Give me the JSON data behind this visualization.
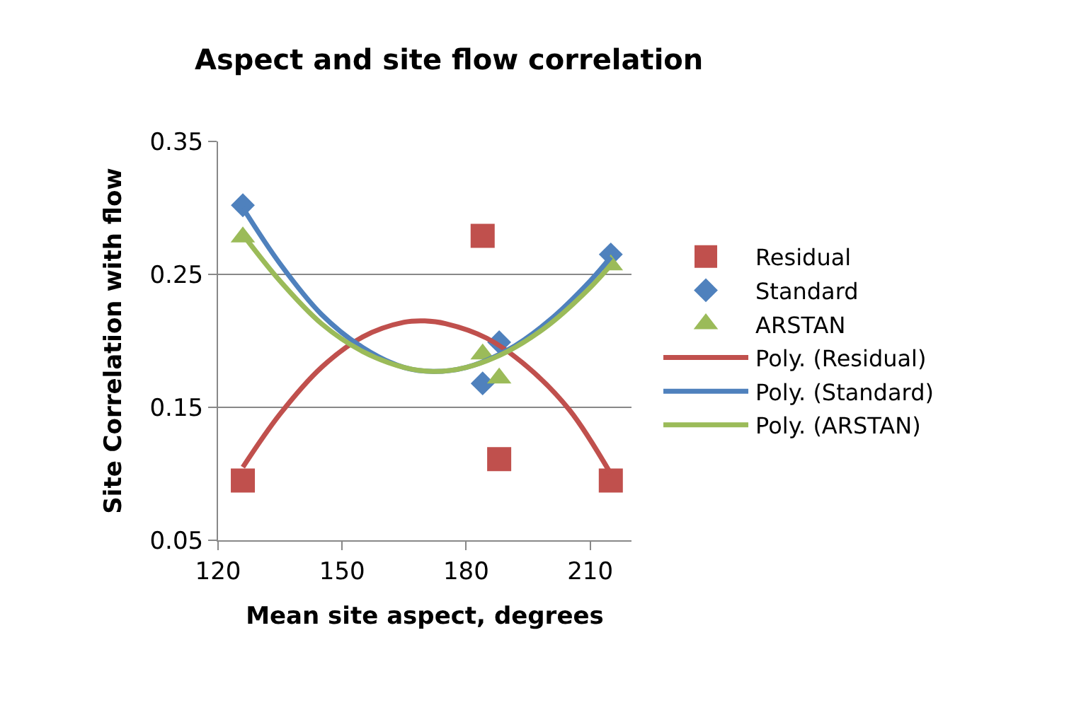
{
  "chart_data": {
    "type": "scatter",
    "title": "Aspect and site flow correlation",
    "xlabel": "Mean site aspect, degrees",
    "ylabel": "Site Correlation with flow",
    "xlim": [
      120,
      220
    ],
    "xticks": [
      120,
      150,
      180,
      210
    ],
    "ylim": [
      0.05,
      0.35
    ],
    "yticks": [
      0.05,
      0.15,
      0.25,
      0.35
    ],
    "grid": "y",
    "legend": "right",
    "series": [
      {
        "name": "Residual",
        "marker": "square",
        "color": "#c0504d",
        "x": [
          126,
          184,
          188,
          215
        ],
        "values": [
          0.095,
          0.279,
          0.111,
          0.095
        ]
      },
      {
        "name": "Standard",
        "marker": "diamond",
        "color": "#4f81bd",
        "x": [
          126,
          184,
          188,
          215
        ],
        "values": [
          0.302,
          0.168,
          0.199,
          0.265
        ]
      },
      {
        "name": "ARSTAN",
        "marker": "triangle",
        "color": "#9bbb59",
        "x": [
          126,
          184,
          188,
          215
        ],
        "values": [
          0.278,
          0.19,
          0.172,
          0.257
        ]
      },
      {
        "name": "Poly. (Residual)",
        "type": "line",
        "marker": "none",
        "color": "#c0504d",
        "x": [
          126,
          135,
          145,
          155,
          165,
          170,
          175,
          185,
          195,
          205,
          215
        ],
        "values": [
          0.105,
          0.145,
          0.18,
          0.203,
          0.214,
          0.215,
          0.213,
          0.202,
          0.18,
          0.148,
          0.1
        ]
      },
      {
        "name": "Poly. (Standard)",
        "type": "line",
        "marker": "none",
        "color": "#4f81bd",
        "x": [
          126,
          135,
          145,
          155,
          165,
          172,
          180,
          190,
          200,
          210,
          215
        ],
        "values": [
          0.3,
          0.258,
          0.22,
          0.195,
          0.18,
          0.177,
          0.18,
          0.193,
          0.215,
          0.245,
          0.263
        ]
      },
      {
        "name": "Poly. (ARSTAN)",
        "type": "line",
        "marker": "none",
        "color": "#9bbb59",
        "x": [
          126,
          135,
          145,
          155,
          165,
          172,
          180,
          190,
          200,
          210,
          215
        ],
        "values": [
          0.28,
          0.245,
          0.213,
          0.192,
          0.18,
          0.177,
          0.18,
          0.192,
          0.212,
          0.24,
          0.257
        ]
      }
    ]
  }
}
